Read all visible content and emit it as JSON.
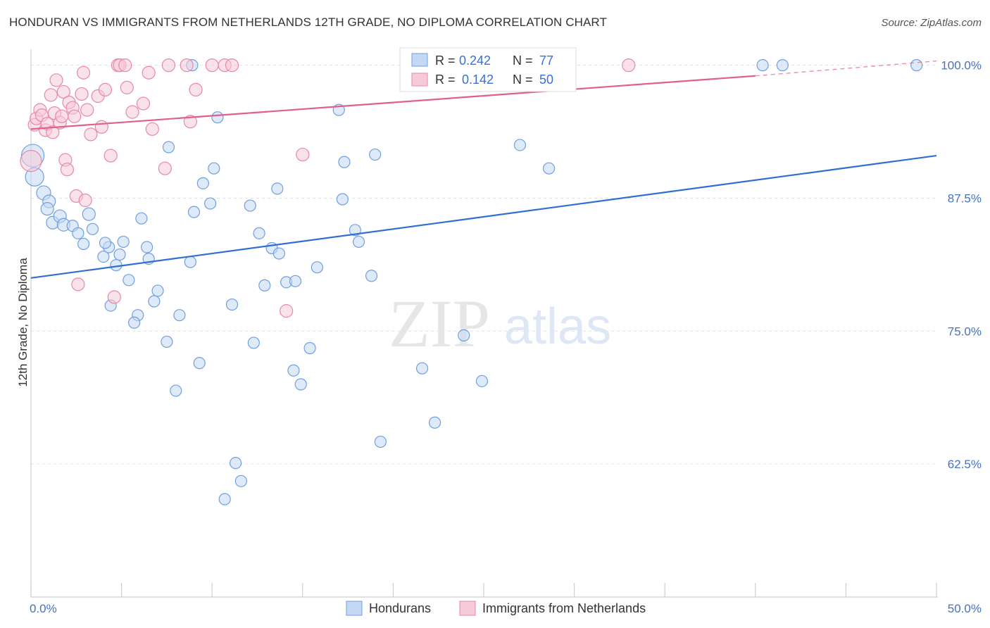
{
  "title": "HONDURAN VS IMMIGRANTS FROM NETHERLANDS 12TH GRADE, NO DIPLOMA CORRELATION CHART",
  "source": "Source: ZipAtlas.com",
  "watermark": {
    "zip": "ZIP",
    "atlas": "atlas"
  },
  "chart_data": {
    "type": "scatter",
    "ylabel": "12th Grade, No Diploma",
    "xlim": [
      0,
      50
    ],
    "ylim": [
      50,
      101.5
    ],
    "x_tick_labels": [
      {
        "value": 0,
        "label": "0.0%"
      },
      {
        "value": 50,
        "label": "50.0%"
      }
    ],
    "y_tick_labels": [
      {
        "value": 100,
        "label": "100.0%"
      },
      {
        "value": 87.5,
        "label": "87.5%"
      },
      {
        "value": 75,
        "label": "75.0%"
      },
      {
        "value": 62.5,
        "label": "62.5%"
      }
    ],
    "grid": "horizontal-dashed",
    "legend_placement": "top-center",
    "series": [
      {
        "name": "Hondurans",
        "color": "#6f9fe0",
        "fill": "#c5d8f3",
        "line_color": "#2e6fd0",
        "R": "0.242",
        "N": "77",
        "trend": {
          "x0": 0,
          "y0": 80.0,
          "x1": 50,
          "y1": 91.5
        },
        "points": [
          [
            0.1,
            91.5,
            16
          ],
          [
            0.2,
            89.5,
            13
          ],
          [
            0.7,
            88.0,
            10
          ],
          [
            1.0,
            87.2,
            9
          ],
          [
            0.9,
            86.5,
            9
          ],
          [
            1.2,
            85.2,
            9
          ],
          [
            1.6,
            85.8,
            9
          ],
          [
            1.8,
            85.0,
            9
          ],
          [
            2.3,
            84.9,
            8
          ],
          [
            3.2,
            86.0,
            9
          ],
          [
            2.6,
            84.2,
            8
          ],
          [
            2.9,
            83.2,
            8
          ],
          [
            3.4,
            84.6,
            8
          ],
          [
            4.0,
            82.0,
            8
          ],
          [
            4.3,
            82.9,
            8
          ],
          [
            4.1,
            83.3,
            8
          ],
          [
            5.1,
            83.4,
            8
          ],
          [
            4.7,
            81.2,
            8
          ],
          [
            4.9,
            82.2,
            8
          ],
          [
            5.4,
            79.8,
            8
          ],
          [
            6.1,
            85.6,
            8
          ],
          [
            6.4,
            82.9,
            8
          ],
          [
            6.5,
            81.8,
            8
          ],
          [
            7.0,
            78.8,
            8
          ],
          [
            6.8,
            77.8,
            8
          ],
          [
            5.9,
            76.5,
            8
          ],
          [
            5.7,
            75.8,
            8
          ],
          [
            4.4,
            77.4,
            8
          ],
          [
            7.5,
            74.0,
            8
          ],
          [
            8.0,
            69.4,
            8
          ],
          [
            8.2,
            76.5,
            8
          ],
          [
            8.8,
            81.5,
            8
          ],
          [
            9.0,
            86.2,
            8
          ],
          [
            7.6,
            92.3,
            8
          ],
          [
            8.9,
            100.0,
            8
          ],
          [
            9.5,
            88.9,
            8
          ],
          [
            9.9,
            87.0,
            8
          ],
          [
            10.1,
            90.3,
            8
          ],
          [
            10.3,
            95.1,
            8
          ],
          [
            9.3,
            72.0,
            8
          ],
          [
            10.7,
            59.2,
            8
          ],
          [
            11.3,
            62.6,
            8
          ],
          [
            11.6,
            60.9,
            8
          ],
          [
            11.1,
            77.5,
            8
          ],
          [
            12.1,
            86.8,
            8
          ],
          [
            12.3,
            73.9,
            8
          ],
          [
            12.6,
            84.2,
            8
          ],
          [
            12.9,
            79.3,
            8
          ],
          [
            13.3,
            82.8,
            8
          ],
          [
            13.6,
            88.4,
            8
          ],
          [
            13.7,
            82.3,
            8
          ],
          [
            14.1,
            79.6,
            8
          ],
          [
            14.6,
            79.7,
            8
          ],
          [
            14.5,
            71.3,
            8
          ],
          [
            14.9,
            70.0,
            8
          ],
          [
            15.4,
            73.4,
            8
          ],
          [
            15.8,
            81.0,
            8
          ],
          [
            17.0,
            95.8,
            8
          ],
          [
            17.3,
            90.9,
            8
          ],
          [
            17.2,
            87.4,
            8
          ],
          [
            17.9,
            84.5,
            8
          ],
          [
            18.1,
            83.4,
            8
          ],
          [
            18.8,
            80.2,
            8
          ],
          [
            19.0,
            91.6,
            8
          ],
          [
            19.3,
            64.6,
            8
          ],
          [
            21.6,
            71.5,
            8
          ],
          [
            22.3,
            66.4,
            8
          ],
          [
            24.0,
            100.0,
            8
          ],
          [
            23.9,
            74.6,
            8
          ],
          [
            24.9,
            70.3,
            8
          ],
          [
            26.8,
            100.0,
            8
          ],
          [
            27.0,
            92.5,
            8
          ],
          [
            28.6,
            90.3,
            8
          ],
          [
            40.4,
            100.0,
            8
          ],
          [
            41.5,
            100.0,
            8
          ],
          [
            48.9,
            100.0,
            8
          ],
          [
            24.2,
            99.9,
            8
          ]
        ]
      },
      {
        "name": "Immigrants from Netherlands",
        "color": "#e888a6",
        "fill": "#f6cad8",
        "line_color": "#e0608a",
        "R": "0.142",
        "N": "50",
        "trend": {
          "x0": 0,
          "y0": 94.0,
          "x1": 40,
          "y1": 99.0,
          "dash_x1": 50,
          "dash_y1": 100.4
        },
        "points": [
          [
            0.0,
            91.0,
            15
          ],
          [
            0.2,
            94.4,
            9
          ],
          [
            0.3,
            95.0,
            9
          ],
          [
            0.5,
            95.8,
            9
          ],
          [
            0.6,
            95.3,
            9
          ],
          [
            0.8,
            93.9,
            9
          ],
          [
            0.9,
            94.5,
            9
          ],
          [
            1.1,
            97.2,
            9
          ],
          [
            1.2,
            93.7,
            9
          ],
          [
            1.3,
            95.5,
            9
          ],
          [
            1.4,
            98.6,
            9
          ],
          [
            1.6,
            94.6,
            9
          ],
          [
            1.7,
            95.2,
            9
          ],
          [
            1.8,
            97.5,
            9
          ],
          [
            1.9,
            91.1,
            9
          ],
          [
            2.0,
            90.2,
            9
          ],
          [
            2.1,
            96.5,
            9
          ],
          [
            2.3,
            96.0,
            9
          ],
          [
            2.4,
            95.2,
            9
          ],
          [
            2.5,
            87.7,
            9
          ],
          [
            2.6,
            79.4,
            9
          ],
          [
            2.8,
            97.3,
            9
          ],
          [
            2.9,
            99.3,
            9
          ],
          [
            3.0,
            87.3,
            9
          ],
          [
            3.1,
            95.8,
            9
          ],
          [
            3.3,
            93.5,
            9
          ],
          [
            3.7,
            97.1,
            9
          ],
          [
            3.9,
            94.2,
            9
          ],
          [
            4.1,
            97.7,
            9
          ],
          [
            4.4,
            91.5,
            9
          ],
          [
            4.6,
            78.2,
            9
          ],
          [
            4.8,
            100.0,
            9
          ],
          [
            4.9,
            100.0,
            9
          ],
          [
            5.2,
            100.0,
            9
          ],
          [
            5.3,
            97.9,
            9
          ],
          [
            5.6,
            95.6,
            9
          ],
          [
            6.2,
            96.4,
            9
          ],
          [
            6.5,
            99.3,
            9
          ],
          [
            6.7,
            94.0,
            9
          ],
          [
            7.4,
            90.3,
            9
          ],
          [
            7.6,
            100.0,
            9
          ],
          [
            8.6,
            100.0,
            9
          ],
          [
            8.8,
            94.7,
            9
          ],
          [
            9.1,
            97.7,
            9
          ],
          [
            10.0,
            100.0,
            9
          ],
          [
            10.7,
            100.0,
            9
          ],
          [
            11.1,
            100.0,
            9
          ],
          [
            14.1,
            76.9,
            9
          ],
          [
            15.0,
            91.6,
            9
          ],
          [
            33.0,
            100.0,
            9
          ]
        ]
      }
    ]
  }
}
